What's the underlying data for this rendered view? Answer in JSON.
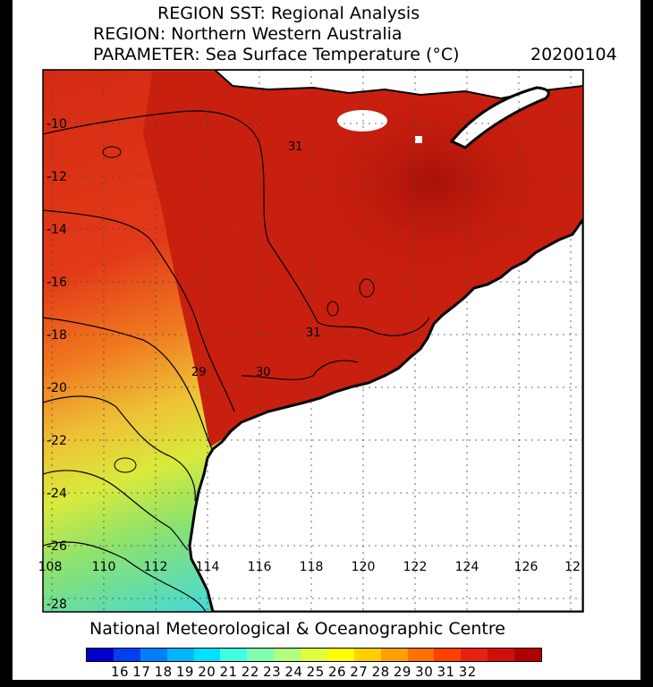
{
  "header": {
    "title": "REGION SST: Regional Analysis",
    "region": "REGION: Northern Western Australia",
    "parameter": "PARAMETER: Sea Surface Temperature (°C)",
    "date": "20200104"
  },
  "map": {
    "lon_labels": [
      "108",
      "110",
      "112",
      "114",
      "116",
      "118",
      "120",
      "122",
      "124",
      "126",
      "12"
    ],
    "lat_labels": [
      "-10",
      "-12",
      "-14",
      "-16",
      "-18",
      "-20",
      "-22",
      "-24",
      "-26",
      "-28"
    ],
    "contour_labels": [
      "31",
      "29",
      "30",
      "31"
    ],
    "colors": {
      "sea_hot": "#c9200f",
      "sea_hotter": "#b8160c",
      "sea_warm": "#e8401a",
      "sea_mid": "#f08a22",
      "sea_yellow": "#e6e33a",
      "sea_green": "#8fe26a",
      "sea_cyan": "#3fd8e0",
      "land": "#ffffff",
      "coast": "#000000"
    }
  },
  "footer": {
    "credit": "National Meteorological & Oceanographic Centre"
  },
  "colorbar": {
    "labels": [
      "16",
      "17",
      "18",
      "19",
      "20",
      "21",
      "22",
      "23",
      "24",
      "25",
      "26",
      "27",
      "28",
      "29",
      "30",
      "31",
      "32"
    ],
    "colors": [
      "#0000c8",
      "#0040f0",
      "#0080ff",
      "#00b4ff",
      "#00e0ff",
      "#40ffe0",
      "#80ffb0",
      "#b0ff80",
      "#e0ff40",
      "#ffff00",
      "#ffd000",
      "#ffa000",
      "#ff7000",
      "#ff4000",
      "#e82010",
      "#d01008",
      "#b00000"
    ]
  }
}
